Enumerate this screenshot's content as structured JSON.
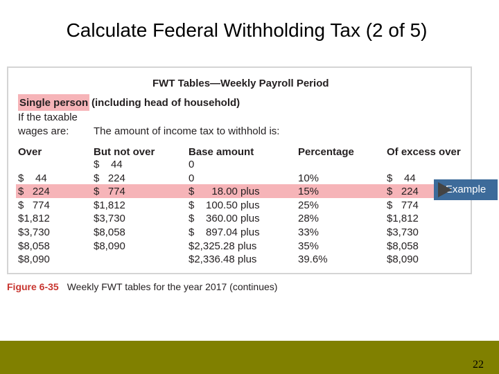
{
  "slide": {
    "title": "Calculate Federal Withholding Tax (2 of 5)",
    "page_number": "22"
  },
  "table": {
    "heading": "FWT Tables—Weekly Payroll Period",
    "single_person": "Single person",
    "including": "(including head of household)",
    "if_taxable_line1": "If the taxable",
    "if_taxable_line2": "wages are:",
    "amount_text": "The amount of income tax to withhold is:",
    "headers": [
      "Over",
      "But not over",
      "Base amount",
      "Percentage",
      "Of excess over"
    ],
    "rows": [
      [
        "",
        "$    44",
        "0",
        "",
        ""
      ],
      [
        "$    44",
        "$   224",
        "0",
        "10%",
        "$    44"
      ],
      [
        "$   224",
        "$   774",
        "$      18.00 plus",
        "15%",
        "$   224"
      ],
      [
        "$   774",
        "$1,812",
        "$    100.50 plus",
        "25%",
        "$   774"
      ],
      [
        "$1,812",
        "$3,730",
        "$    360.00 plus",
        "28%",
        "$1,812"
      ],
      [
        "$3,730",
        "$8,058",
        "$    897.04 plus",
        "33%",
        "$3,730"
      ],
      [
        "$8,058",
        "$8,090",
        "$2,325.28 plus",
        "35%",
        "$8,058"
      ],
      [
        "$8,090",
        "",
        "$2,336.48 plus",
        "39.6%",
        "$8,090"
      ]
    ],
    "highlighted_row_index": 2,
    "highlight_color": "#f6b4b8"
  },
  "caption": {
    "figure_number": "Figure 6-35",
    "text": "Weekly FWT tables for the year 2017 (continues)"
  },
  "example_button": {
    "label": "Example",
    "color": "#3d6b9a"
  },
  "footer_color": "#808000"
}
